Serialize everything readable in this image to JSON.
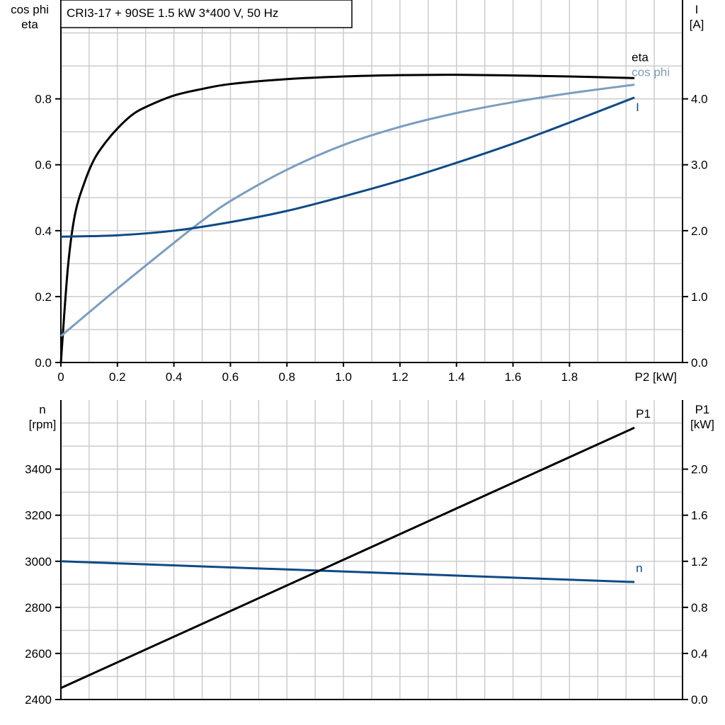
{
  "chart_data": [
    {
      "type": "line",
      "title": "CRI3-17 + 90SE   1.5 kW   3*400 V, 50 Hz",
      "xlabel": "P2 [kW]",
      "ylabel_left": [
        "cos phi",
        "eta"
      ],
      "ylabel_right": [
        "I",
        "[A]"
      ],
      "xlim": [
        0,
        2.2
      ],
      "ylim_left": [
        0,
        1.1
      ],
      "ylim_right": [
        0,
        5.5
      ],
      "xticks": [
        "0",
        "0.2",
        "0.4",
        "0.6",
        "0.8",
        "1.0",
        "1.2",
        "1.4",
        "1.6",
        "1.8"
      ],
      "yticks_left": [
        "0.0",
        "0.2",
        "0.4",
        "0.6",
        "0.8"
      ],
      "yticks_right": [
        "0.0",
        "1.0",
        "2.0",
        "3.0",
        "4.0"
      ],
      "grid": true,
      "series": [
        {
          "name": "eta",
          "axis": "left",
          "color": "#000000",
          "x": [
            0,
            0.025,
            0.05,
            0.085,
            0.12,
            0.16,
            0.2,
            0.25,
            0.3,
            0.4,
            0.5,
            0.6,
            0.8,
            1.0,
            1.2,
            1.4,
            1.6,
            1.8,
            2.03
          ],
          "y": [
            0,
            0.29,
            0.45,
            0.55,
            0.62,
            0.67,
            0.71,
            0.75,
            0.775,
            0.81,
            0.83,
            0.845,
            0.86,
            0.868,
            0.872,
            0.873,
            0.871,
            0.868,
            0.863
          ]
        },
        {
          "name": "cos phi",
          "axis": "left",
          "color": "#7b9dbe",
          "x": [
            0,
            0.2,
            0.4,
            0.5,
            0.6,
            0.8,
            1.0,
            1.2,
            1.4,
            1.6,
            1.8,
            2.03
          ],
          "y": [
            0.08,
            0.224,
            0.363,
            0.43,
            0.49,
            0.585,
            0.66,
            0.715,
            0.757,
            0.79,
            0.817,
            0.843
          ]
        },
        {
          "name": "I",
          "axis": "right",
          "color": "#0e4a86",
          "x": [
            0,
            0.2,
            0.4,
            0.6,
            0.8,
            1.0,
            1.2,
            1.4,
            1.6,
            1.8,
            2.03
          ],
          "y": [
            1.91,
            1.93,
            2.0,
            2.13,
            2.3,
            2.52,
            2.76,
            3.03,
            3.32,
            3.64,
            4.02
          ]
        }
      ]
    },
    {
      "type": "line",
      "ylabel_left": [
        "n",
        "[rpm]"
      ],
      "ylabel_right": [
        "P1",
        "[kW]"
      ],
      "xlim": [
        0,
        2.2
      ],
      "ylim_left": [
        2400,
        3700
      ],
      "ylim_right": [
        0,
        2.6
      ],
      "yticks_left": [
        "2400",
        "2600",
        "2800",
        "3000",
        "3200",
        "3400"
      ],
      "yticks_right": [
        "0.0",
        "0.4",
        "0.8",
        "1.2",
        "1.6",
        "2.0"
      ],
      "grid": true,
      "series": [
        {
          "name": "n",
          "axis": "left",
          "color": "#0e4a86",
          "x": [
            0,
            2.03
          ],
          "y": [
            3000,
            2910
          ]
        },
        {
          "name": "P1",
          "axis": "right",
          "color": "#000000",
          "x": [
            0,
            2.03
          ],
          "y": [
            0.1,
            2.36
          ]
        }
      ]
    }
  ]
}
